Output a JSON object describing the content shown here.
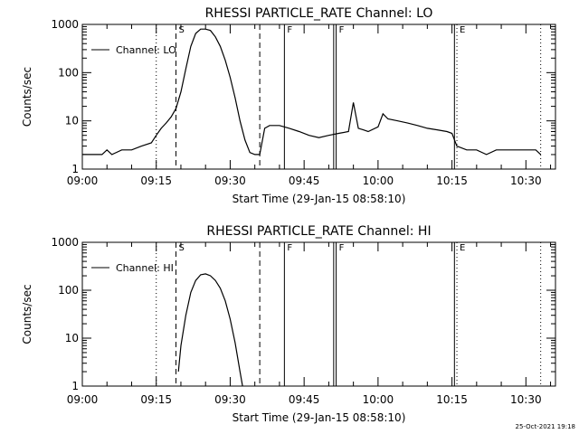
{
  "footer": {
    "date_stamp": "25-Oct-2021 19:18"
  },
  "chart_data": [
    {
      "type": "line",
      "title": "RHESSI PARTICLE_RATE Channel: LO",
      "xlabel": "Start Time (29-Jan-15 08:58:10)",
      "ylabel": "Counts/sec",
      "yscale": "log",
      "ylim": [
        1,
        1000
      ],
      "xlim": [
        "09:00",
        "10:36"
      ],
      "x_tick_labels": [
        "09:00",
        "09:15",
        "09:30",
        "09:45",
        "10:00",
        "10:15",
        "10:30"
      ],
      "y_tick_labels": [
        "1",
        "10",
        "100",
        "1000"
      ],
      "legend": {
        "entry": "Channel: LO",
        "position": "top-left"
      },
      "markers": [
        {
          "time": "09:15",
          "style": "dotted",
          "label": ""
        },
        {
          "time": "09:19",
          "style": "dashed",
          "label": "S"
        },
        {
          "time": "09:36",
          "style": "dashed",
          "label": ""
        },
        {
          "time": "09:41",
          "style": "solid",
          "label": "F"
        },
        {
          "time": "09:51",
          "style": "solid",
          "label": ""
        },
        {
          "time": "09:51.5",
          "style": "solid",
          "label": "F"
        },
        {
          "time": "10:15.5",
          "style": "solid",
          "label": ""
        },
        {
          "time": "10:16",
          "style": "dotted",
          "label": "E"
        },
        {
          "time": "10:33",
          "style": "dotted",
          "label": ""
        }
      ],
      "series": [
        {
          "color": "#000000",
          "x": [
            "09:00",
            "09:02",
            "09:04",
            "09:05",
            "09:06",
            "09:08",
            "09:10",
            "09:12",
            "09:14",
            "09:15",
            "09:16",
            "09:17",
            "09:18",
            "09:19",
            "09:20",
            "09:21",
            "09:22",
            "09:23",
            "09:24",
            "09:25",
            "09:26",
            "09:27",
            "09:28",
            "09:29",
            "09:30",
            "09:31",
            "09:32",
            "09:33",
            "09:34",
            "09:35",
            "09:36",
            "09:37",
            "09:38",
            "09:40",
            "09:42",
            "09:44",
            "09:46",
            "09:48",
            "09:50",
            "09:52",
            "09:54",
            "09:55",
            "09:56",
            "09:57",
            "09:58",
            "10:00",
            "10:01",
            "10:02",
            "10:04",
            "10:06",
            "10:08",
            "10:10",
            "10:12",
            "10:14",
            "10:15",
            "10:16",
            "10:18",
            "10:20",
            "10:22",
            "10:24",
            "10:26",
            "10:28",
            "10:30",
            "10:32",
            "10:33"
          ],
          "y": [
            2,
            2,
            2,
            2.5,
            2,
            2.5,
            2.5,
            3,
            3.5,
            5,
            7,
            9,
            12,
            18,
            40,
            120,
            350,
            650,
            800,
            800,
            750,
            550,
            350,
            180,
            80,
            30,
            10,
            4,
            2.2,
            2,
            2,
            7,
            8,
            8,
            7,
            6,
            5,
            4.5,
            5,
            5.5,
            6,
            24,
            7,
            6.5,
            6,
            7.5,
            14,
            11,
            10,
            9,
            8,
            7,
            6.5,
            6,
            5.5,
            3,
            2.5,
            2.5,
            2,
            2.5,
            2.5,
            2.5,
            2.5,
            2.5,
            2
          ]
        }
      ]
    },
    {
      "type": "line",
      "title": "RHESSI PARTICLE_RATE Channel: HI",
      "xlabel": "Start Time (29-Jan-15 08:58:10)",
      "ylabel": "Counts/sec",
      "yscale": "log",
      "ylim": [
        1,
        1000
      ],
      "xlim": [
        "09:00",
        "10:36"
      ],
      "x_tick_labels": [
        "09:00",
        "09:15",
        "09:30",
        "09:45",
        "10:00",
        "10:15",
        "10:30"
      ],
      "y_tick_labels": [
        "1",
        "10",
        "100",
        "1000"
      ],
      "legend": {
        "entry": "Channel: HI",
        "position": "top-left"
      },
      "markers": [
        {
          "time": "09:15",
          "style": "dotted",
          "label": ""
        },
        {
          "time": "09:19",
          "style": "dashed",
          "label": "S"
        },
        {
          "time": "09:36",
          "style": "dashed",
          "label": ""
        },
        {
          "time": "09:41",
          "style": "solid",
          "label": "F"
        },
        {
          "time": "09:51",
          "style": "solid",
          "label": ""
        },
        {
          "time": "09:51.5",
          "style": "solid",
          "label": "F"
        },
        {
          "time": "10:15.5",
          "style": "solid",
          "label": ""
        },
        {
          "time": "10:16",
          "style": "dotted",
          "label": "E"
        },
        {
          "time": "10:33",
          "style": "dotted",
          "label": ""
        }
      ],
      "series": [
        {
          "color": "#000000",
          "x": [
            "09:19.5",
            "09:20",
            "09:21",
            "09:22",
            "09:23",
            "09:24",
            "09:25",
            "09:26",
            "09:27",
            "09:28",
            "09:29",
            "09:30",
            "09:31",
            "09:32",
            "09:32.5"
          ],
          "y": [
            2,
            7,
            30,
            90,
            160,
            210,
            220,
            200,
            160,
            110,
            60,
            25,
            8,
            2,
            1
          ]
        }
      ]
    }
  ]
}
